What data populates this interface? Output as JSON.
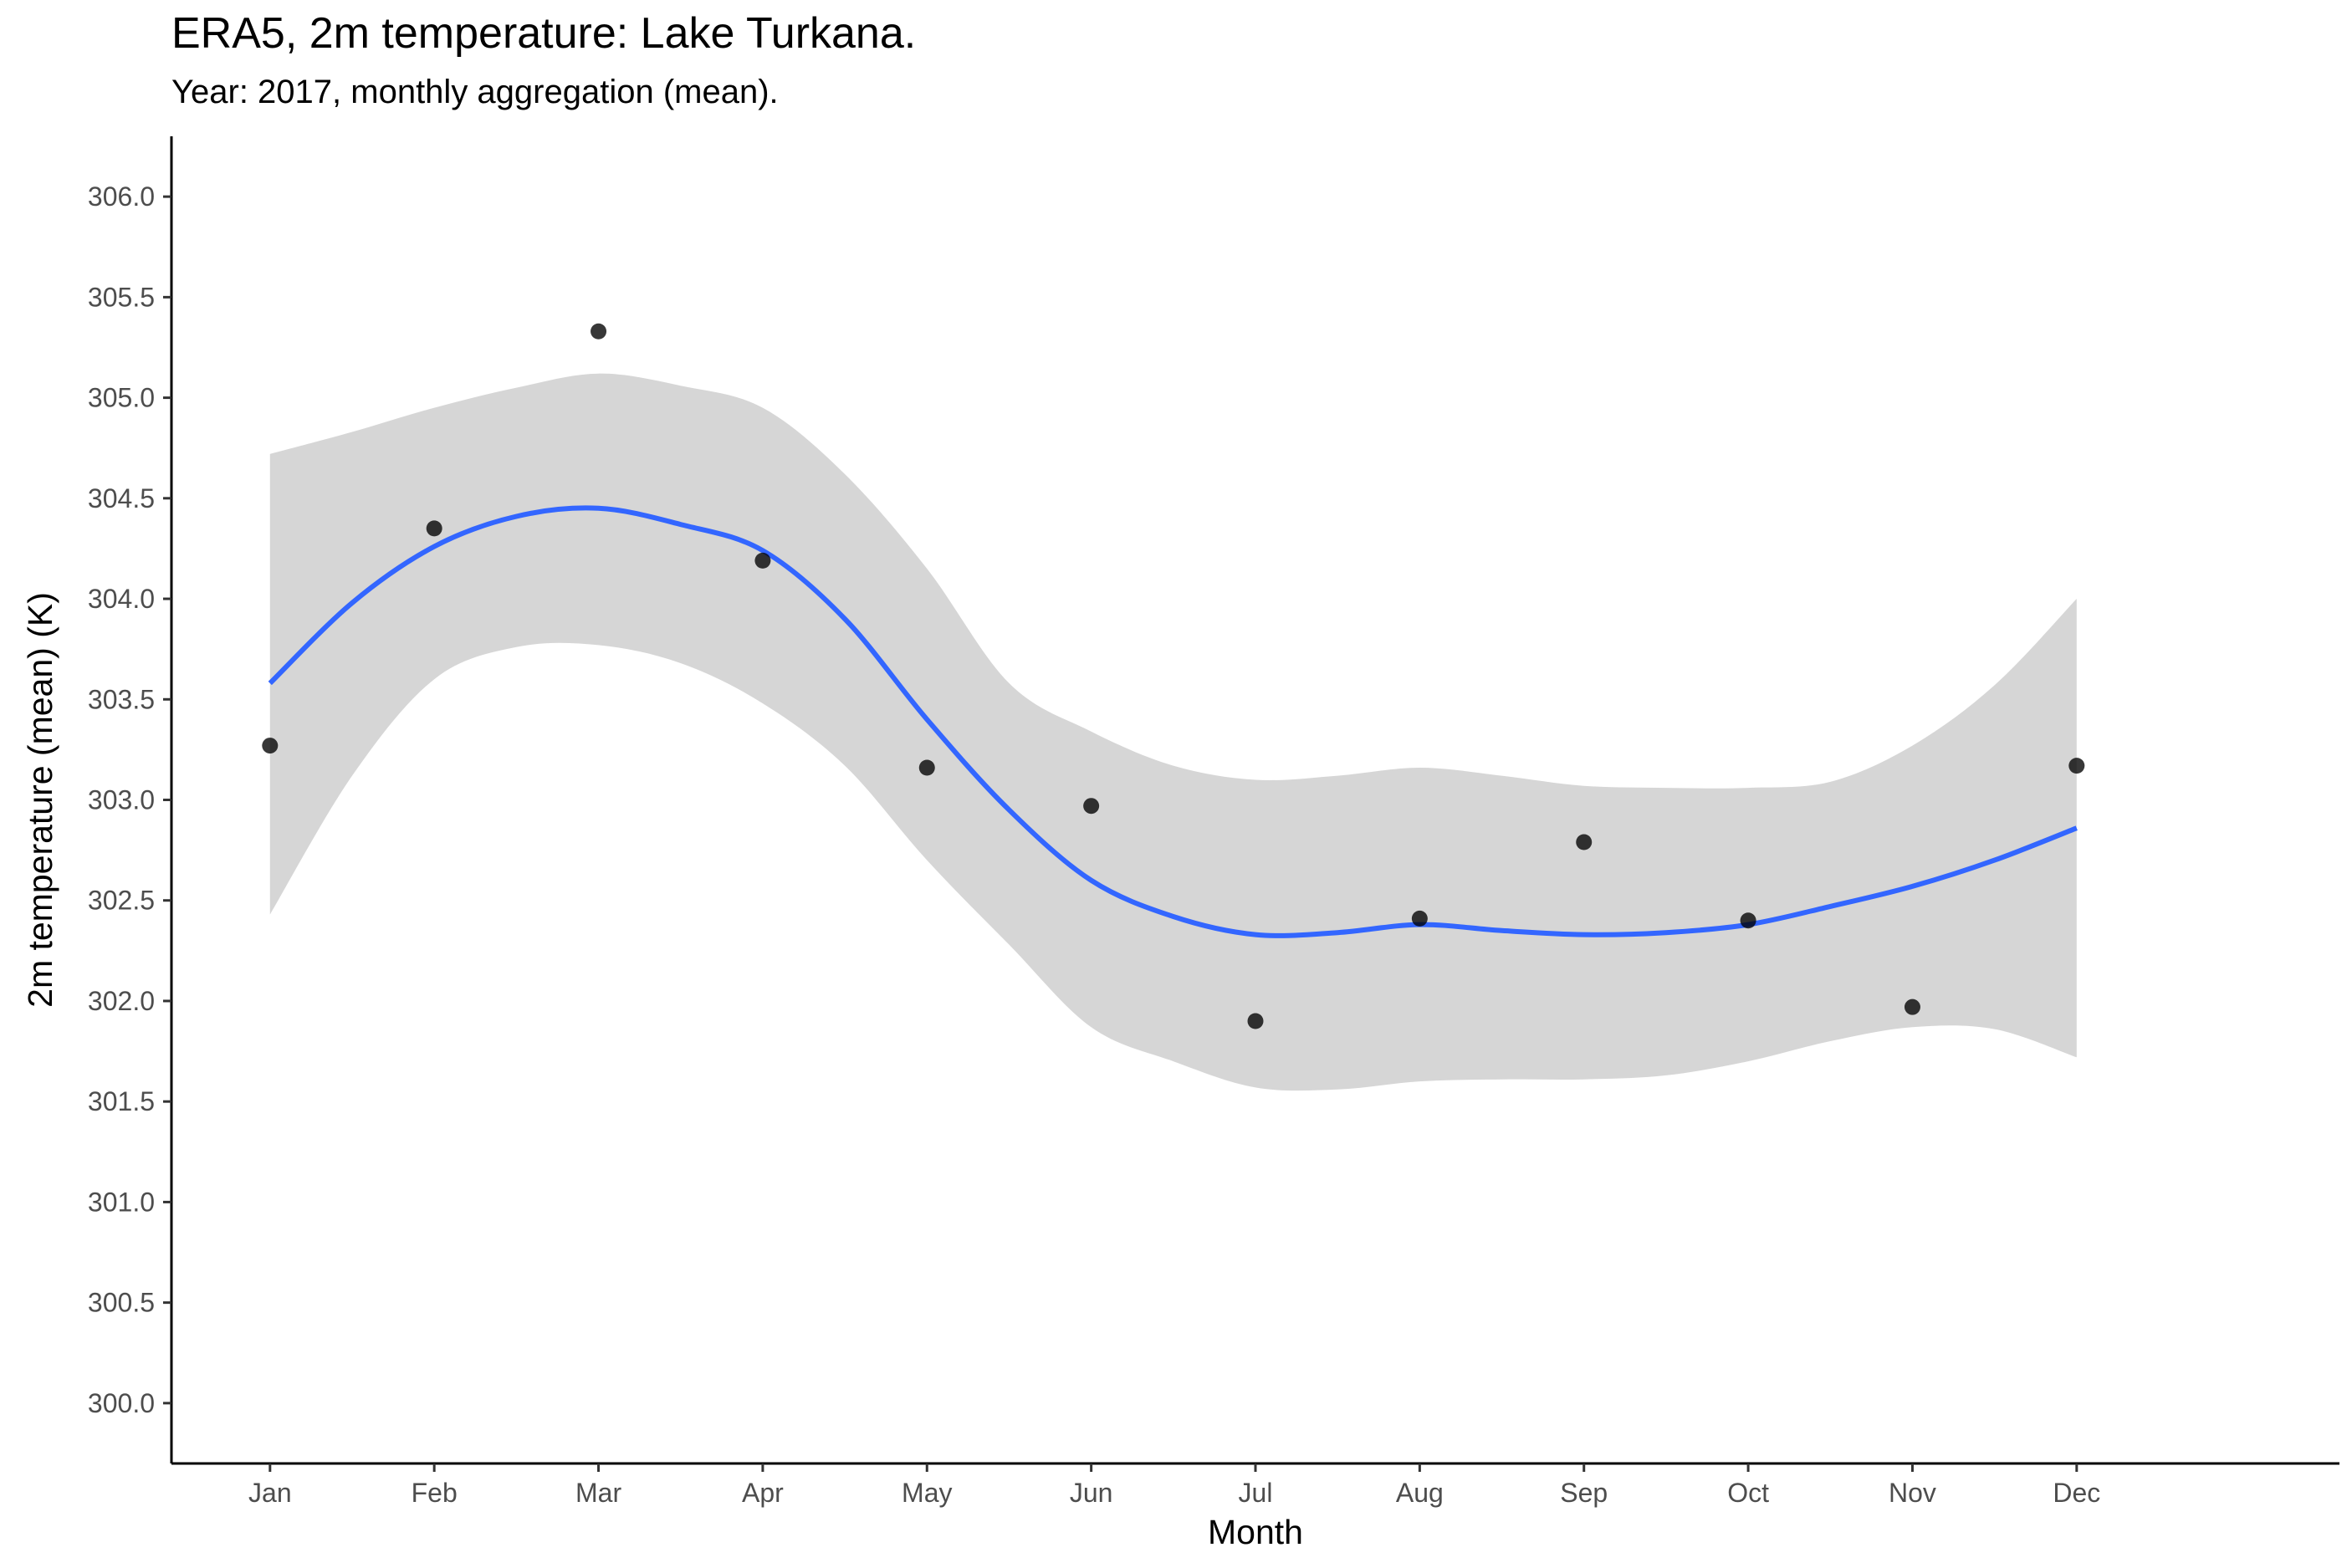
{
  "chart_data": {
    "type": "scatter",
    "title": "ERA5, 2m temperature: Lake Turkana.",
    "subtitle": "Year: 2017, monthly aggregation (mean).",
    "xlabel": "Month",
    "ylabel": "2m temperature (mean) (K)",
    "categories": [
      "Jan",
      "Feb",
      "Mar",
      "Apr",
      "May",
      "Jun",
      "Jul",
      "Aug",
      "Sep",
      "Oct",
      "Nov",
      "Dec"
    ],
    "xlim": [
      0.4,
      13.6
    ],
    "ylim": [
      299.7,
      306.3
    ],
    "y_ticks": [
      300.0,
      300.5,
      301.0,
      301.5,
      302.0,
      302.5,
      303.0,
      303.5,
      304.0,
      304.5,
      305.0,
      305.5,
      306.0
    ],
    "y_tick_labels": [
      "300.0",
      "300.5",
      "301.0",
      "301.5",
      "302.0",
      "302.5",
      "303.0",
      "303.5",
      "304.0",
      "304.5",
      "305.0",
      "305.5",
      "306.0"
    ],
    "grid": false,
    "legend": "none",
    "series": [
      {
        "type": "points",
        "values": [
          303.27,
          304.35,
          305.33,
          304.19,
          303.16,
          302.97,
          301.9,
          302.41,
          302.79,
          302.4,
          301.97,
          303.17
        ]
      },
      {
        "type": "smooth",
        "x": [
          1,
          1.5,
          2,
          2.5,
          3,
          3.5,
          4,
          4.5,
          5,
          5.5,
          6,
          6.5,
          7,
          7.5,
          8,
          8.5,
          9,
          9.5,
          10,
          10.5,
          11,
          11.5,
          12
        ],
        "values": [
          303.58,
          303.98,
          304.26,
          304.41,
          304.45,
          304.37,
          304.24,
          303.9,
          303.4,
          302.95,
          302.6,
          302.42,
          302.33,
          302.34,
          302.38,
          302.35,
          302.33,
          302.34,
          302.38,
          302.47,
          302.57,
          302.7,
          302.86
        ],
        "ci_lower": [
          302.43,
          303.12,
          303.6,
          303.76,
          303.77,
          303.68,
          303.48,
          303.17,
          302.7,
          302.28,
          301.87,
          301.7,
          301.57,
          301.56,
          301.6,
          301.61,
          301.61,
          301.63,
          301.7,
          301.8,
          301.87,
          301.86,
          301.72
        ],
        "ci_upper": [
          304.72,
          304.83,
          304.95,
          305.05,
          305.12,
          305.06,
          304.95,
          304.62,
          304.15,
          303.58,
          303.34,
          303.17,
          303.1,
          303.12,
          303.16,
          303.12,
          303.07,
          303.06,
          303.06,
          303.09,
          303.27,
          303.57,
          304.0
        ]
      }
    ],
    "colors": {
      "points": "#000000",
      "smooth": "#3366ff",
      "ci_band": "#d6d6d6",
      "axis": "#000000",
      "tick_label": "#4d4d4d"
    }
  }
}
